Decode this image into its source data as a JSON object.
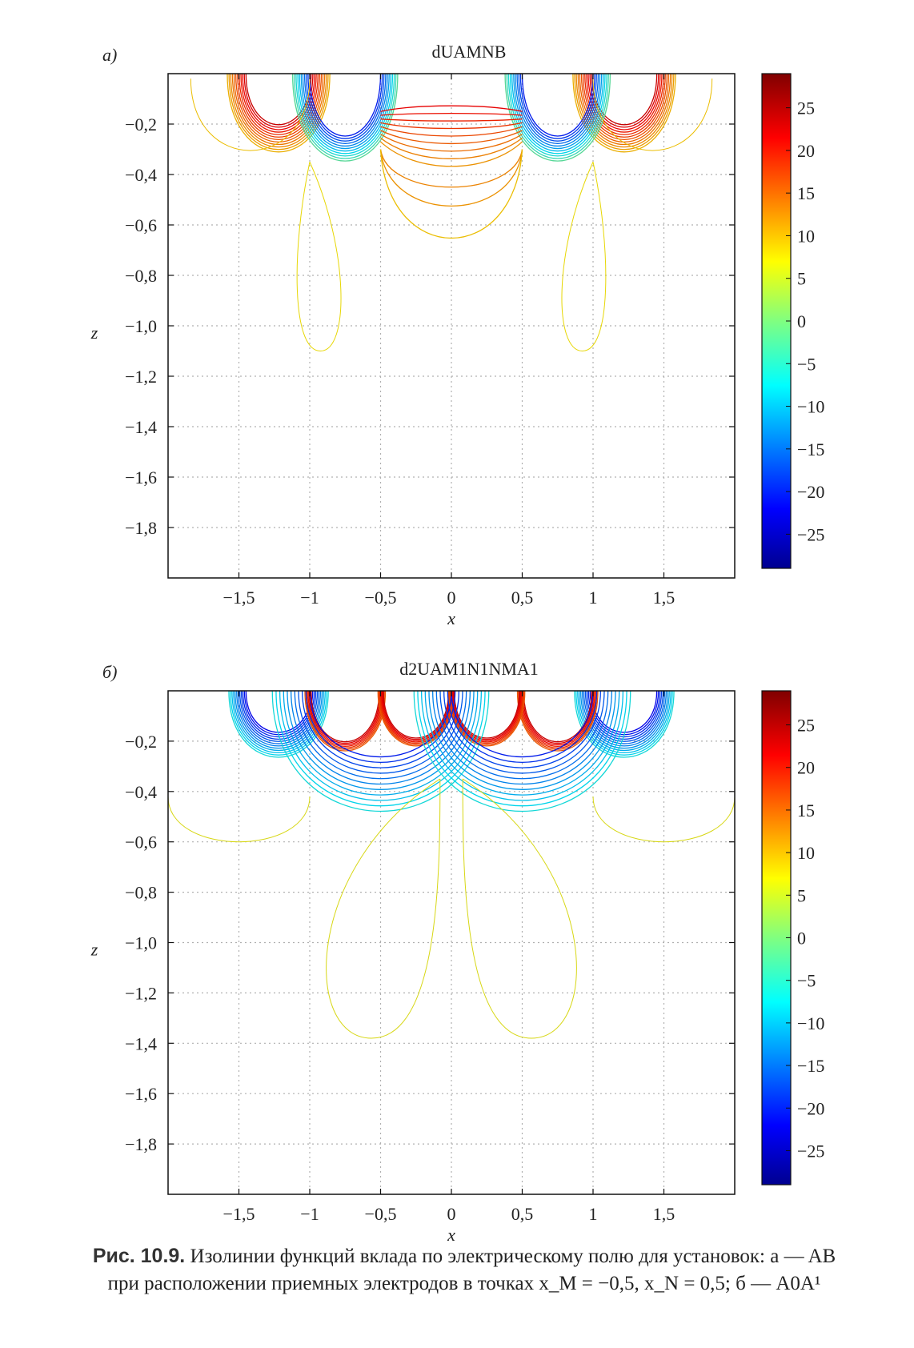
{
  "chart_data": [
    {
      "type": "contour",
      "panel_label": "a)",
      "title": "dUAMNB",
      "xlabel": "x",
      "ylabel": "z",
      "xlim": [
        -2.0,
        2.0
      ],
      "ylim": [
        -2.0,
        0.0
      ],
      "x_ticks": [
        -1.5,
        -1,
        -0.5,
        0,
        0.5,
        1,
        1.5
      ],
      "x_tick_labels": [
        "−1,5",
        "−1",
        "−0,5",
        "0",
        "0,5",
        "1",
        "1,5"
      ],
      "y_ticks": [
        -0.2,
        -0.4,
        -0.6,
        -0.8,
        -1.0,
        -1.2,
        -1.4,
        -1.6,
        -1.8
      ],
      "y_tick_labels": [
        "−0,2",
        "−0,4",
        "−0,6",
        "−0,8",
        "−1,0",
        "−1,2",
        "−1,4",
        "−1,6",
        "−1,8"
      ],
      "grid": true,
      "colorbar": {
        "range": [
          -29,
          29
        ],
        "ticks": [
          25,
          20,
          15,
          10,
          5,
          0,
          -5,
          -10,
          -15,
          -20,
          -25
        ],
        "tick_labels": [
          "25",
          "20",
          "15",
          "10",
          "5",
          "0",
          "−5",
          "−10",
          "−15",
          "−20",
          "−25"
        ]
      },
      "electrodes_x": [
        -1,
        -0.5,
        0.5,
        1
      ],
      "lobes": [
        {
          "x0": -1.22,
          "r": 0.23,
          "z0": -0.27,
          "n": 12,
          "value": 24,
          "spread": 14,
          "rmax": 0.47
        },
        {
          "x0": 1.22,
          "r": 0.23,
          "z0": -0.27,
          "n": 12,
          "value": 24,
          "spread": 14,
          "rmax": 0.47
        },
        {
          "x0": -0.75,
          "r": 0.25,
          "z0": -0.33,
          "n": 11,
          "value": -20,
          "spread": 18,
          "rmax": 0.47
        },
        {
          "x0": 0.75,
          "r": 0.25,
          "z0": -0.33,
          "n": 11,
          "value": -20,
          "spread": 18,
          "rmax": 0.47
        }
      ],
      "center_zone": {
        "x0": 0,
        "half_width": 0.5,
        "z_top": -0.1,
        "z_bottom": -0.38,
        "n": 9,
        "value": 22,
        "spread": 10
      },
      "outer_curves": [
        {
          "x0": 0,
          "hw": 0.5,
          "z_mid": -0.48,
          "value": 13
        },
        {
          "x0": 0,
          "hw": 0.5,
          "z_mid": -0.58,
          "value": 12
        },
        {
          "x0": 0,
          "hw": 0.5,
          "z_mid": -0.75,
          "value": 9
        }
      ],
      "loops": [
        {
          "x_top": -1.0,
          "x_left": -1.13,
          "x_right": -0.72,
          "z_bottom": -1.1,
          "value": 7
        },
        {
          "x_top": 1.0,
          "x_left": 0.72,
          "x_right": 1.13,
          "z_bottom": -1.1,
          "value": 7
        }
      ],
      "side_curves": [
        {
          "x0": -1.42,
          "r": 0.42,
          "z0": -0.02,
          "zb": -0.4,
          "value": 9
        },
        {
          "x0": 1.42,
          "r": 0.42,
          "z0": -0.02,
          "zb": -0.4,
          "value": 9
        }
      ]
    },
    {
      "type": "contour",
      "panel_label": "б)",
      "title": "d2UAM1N1NMA1",
      "xlabel": "x",
      "ylabel": "z",
      "xlim": [
        -2.0,
        2.0
      ],
      "ylim": [
        -2.0,
        0.0
      ],
      "x_ticks": [
        -1.5,
        -1,
        -0.5,
        0,
        0.5,
        1,
        1.5
      ],
      "x_tick_labels": [
        "−1,5",
        "−1",
        "−0,5",
        "0",
        "0,5",
        "1",
        "1,5"
      ],
      "y_ticks": [
        -0.2,
        -0.4,
        -0.6,
        -0.8,
        -1.0,
        -1.2,
        -1.4,
        -1.6,
        -1.8
      ],
      "y_tick_labels": [
        "−0,2",
        "−0,4",
        "−0,6",
        "−0,8",
        "−1,0",
        "−1,2",
        "−1,4",
        "−1,6",
        "−1,8"
      ],
      "grid": true,
      "colorbar": {
        "range": [
          -29,
          29
        ],
        "ticks": [
          25,
          20,
          15,
          10,
          5,
          0,
          -5,
          -10,
          -15,
          -20,
          -25
        ],
        "tick_labels": [
          "25",
          "20",
          "15",
          "10",
          "5",
          "0",
          "−5",
          "−10",
          "−15",
          "−20",
          "−25"
        ]
      },
      "electrodes_x": [
        -1,
        -0.5,
        0,
        0.5,
        1
      ],
      "lobes": [
        {
          "x0": -1.22,
          "r": 0.23,
          "z0": -0.22,
          "n": 12,
          "value": -22,
          "spread": 16,
          "rmax": 0.45
        },
        {
          "x0": 1.22,
          "r": 0.23,
          "z0": -0.22,
          "n": 12,
          "value": -22,
          "spread": 16,
          "rmax": 0.45
        },
        {
          "x0": -0.75,
          "r": 0.24,
          "z0": -0.27,
          "n": 7,
          "value": 24,
          "spread": 8,
          "rmax": 0.32
        },
        {
          "x0": 0.75,
          "r": 0.24,
          "z0": -0.27,
          "n": 7,
          "value": 24,
          "spread": 8,
          "rmax": 0.32
        },
        {
          "x0": -0.25,
          "r": 0.23,
          "z0": -0.25,
          "n": 7,
          "value": 24,
          "spread": 8,
          "rmax": 0.3
        },
        {
          "x0": 0.25,
          "r": 0.23,
          "z0": -0.25,
          "n": 7,
          "value": 24,
          "spread": 8,
          "rmax": 0.3
        },
        {
          "x0": -0.5,
          "r": 0.5,
          "z0": -0.35,
          "n": 11,
          "value": -20,
          "spread": 14,
          "rmax": 0.98
        },
        {
          "x0": 0.5,
          "r": 0.5,
          "z0": -0.35,
          "n": 11,
          "value": -20,
          "spread": 14,
          "rmax": 0.98
        }
      ],
      "center_zone": null,
      "outer_curves": [],
      "loops": [
        {
          "x_top": -0.08,
          "x_left": -1.05,
          "x_right": -0.08,
          "z_bottom": -1.38,
          "value": 6
        },
        {
          "x_top": 0.08,
          "x_left": 0.08,
          "x_right": 1.05,
          "z_bottom": -1.38,
          "value": 6
        }
      ],
      "side_curves": [
        {
          "x0": -1.5,
          "r": 0.5,
          "z0": -0.42,
          "zb": -0.66,
          "value": 6
        },
        {
          "x0": 1.5,
          "r": 0.5,
          "z0": -0.42,
          "zb": -0.66,
          "value": 6
        }
      ]
    }
  ],
  "caption": {
    "lead": "Рис. 10.9.",
    "line1": "Изолинии функций вклада по электрическому полю для установок: a — AB",
    "line2": "при расположении приемных электродов в точках x_M = −0,5, x_N = 0,5; б — A0A¹"
  }
}
